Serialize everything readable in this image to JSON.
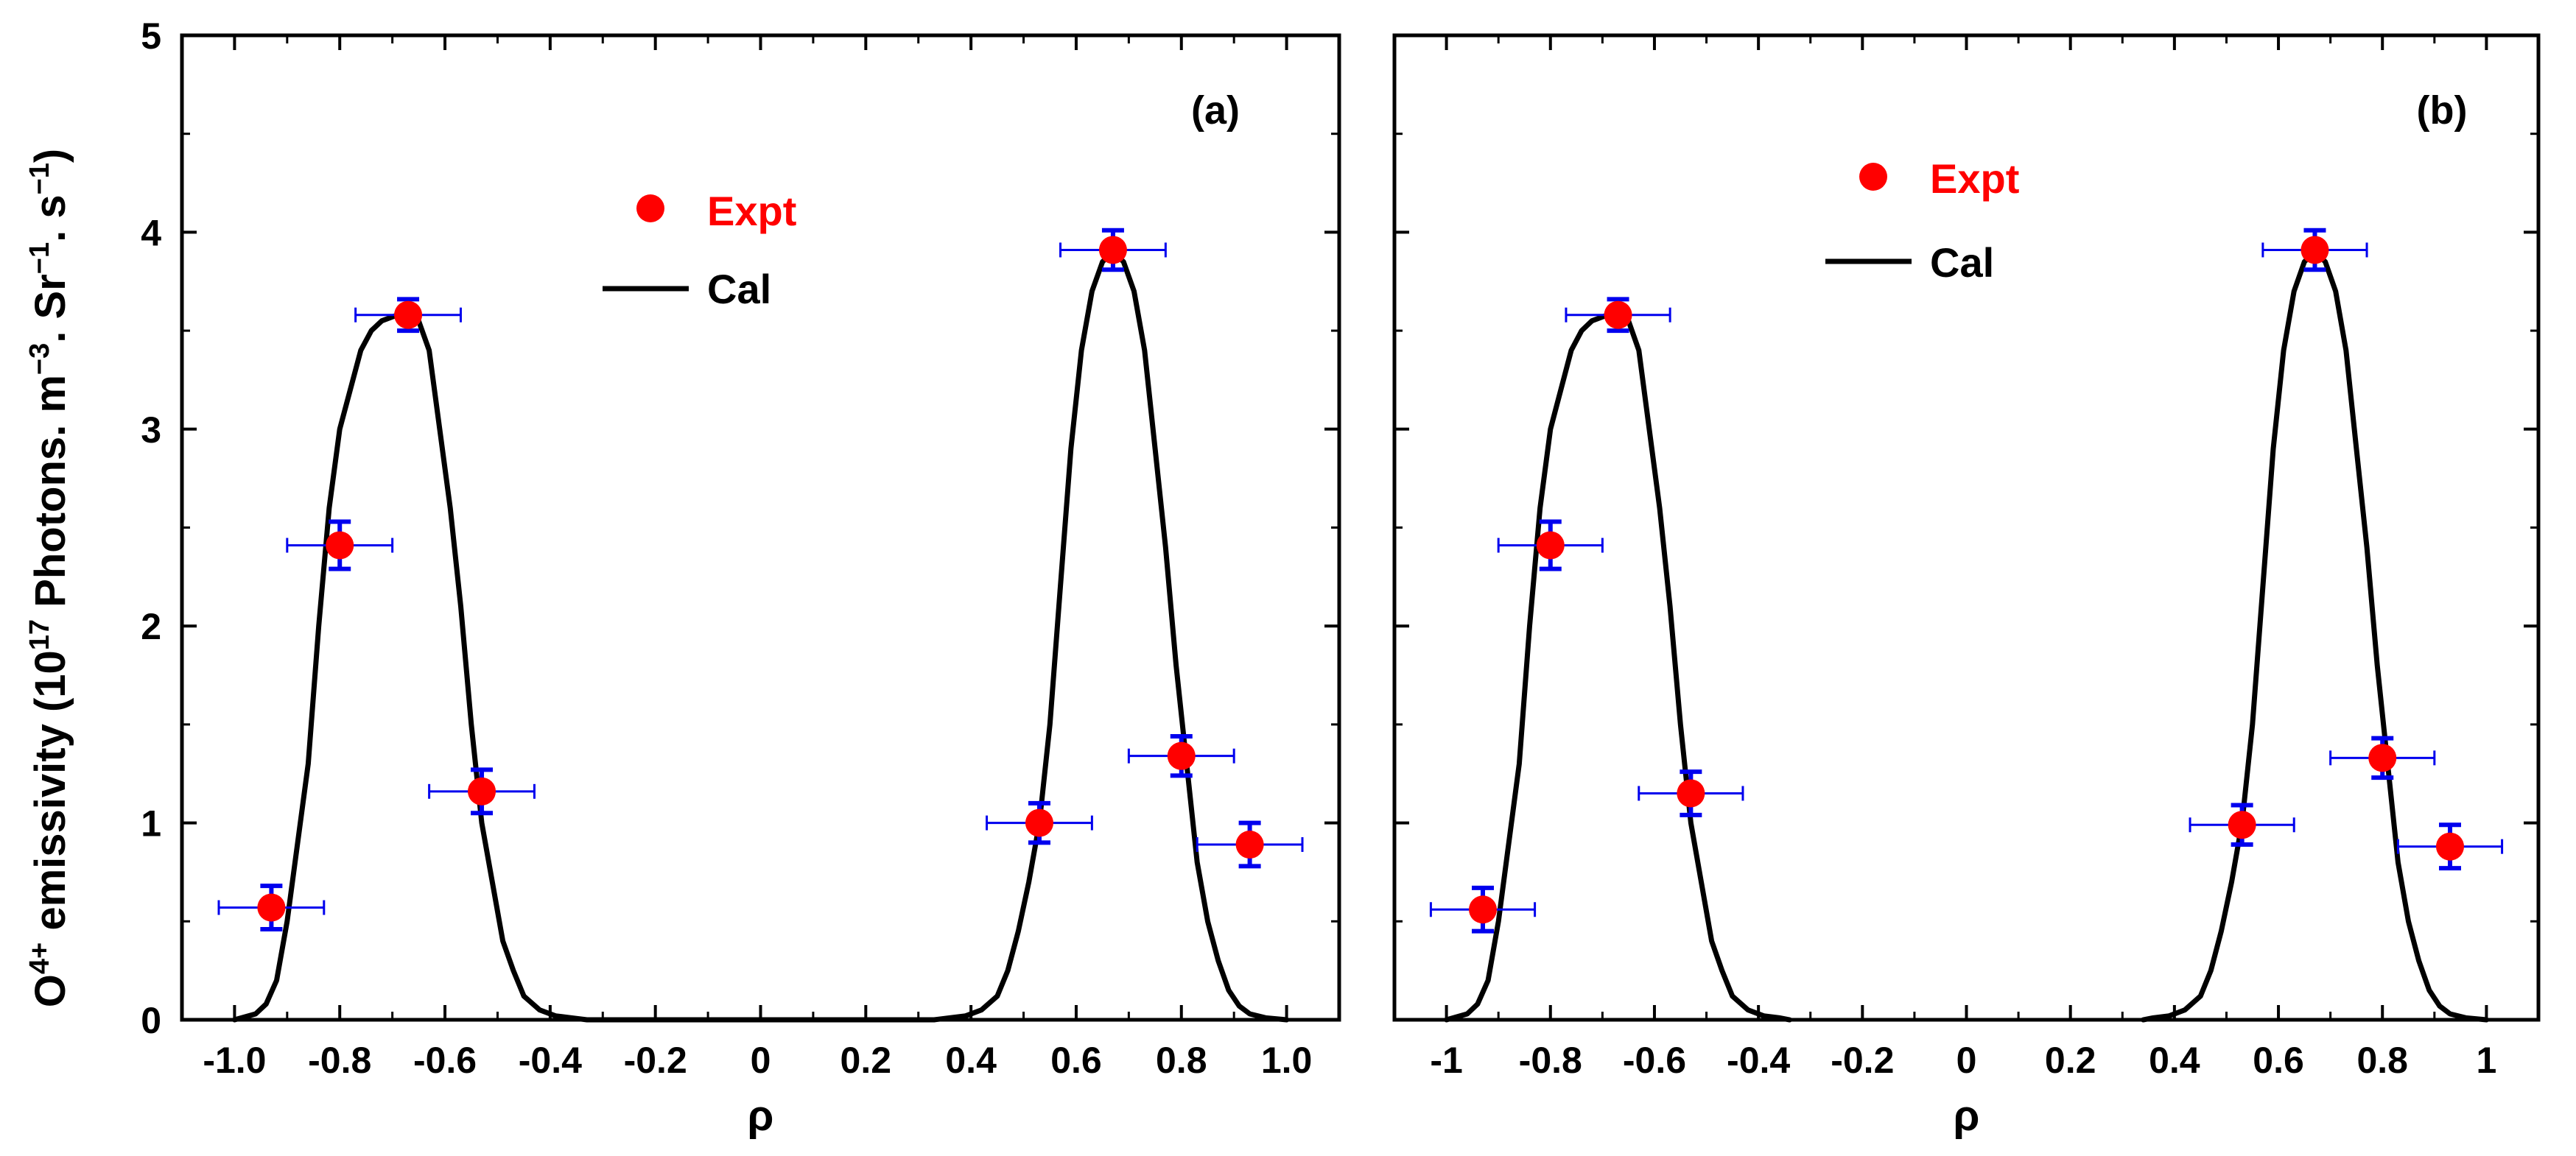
{
  "figure": {
    "ylabel_parts": [
      "O",
      "4+",
      " emissivity (10",
      "17",
      " Photons. m",
      "−3",
      ". Sr",
      "−1",
      ". s",
      "−1",
      ")"
    ],
    "colors": {
      "expt": "#ff0000",
      "errorbar": "#0000ee",
      "cal": "#000000",
      "axes": "#000000"
    }
  },
  "chart_data": [
    {
      "type": "line+scatter",
      "panel_label": "(a)",
      "xlabel": "ρ",
      "ylabel": "O4+ emissivity (10^17 Photons. m^-3. Sr^-1. s^-1)",
      "xlim": [
        -1.1,
        1.1
      ],
      "ylim": [
        0,
        5
      ],
      "xticks": [
        -1.0,
        -0.8,
        -0.6,
        -0.4,
        -0.2,
        0,
        0.2,
        0.4,
        0.6,
        0.8,
        1.0
      ],
      "xtick_labels": [
        "-1.0",
        "-0.8",
        "-0.6",
        "-0.4",
        "-0.2",
        "0",
        "0.2",
        "0.4",
        "0.6",
        "0.8",
        "1.0"
      ],
      "yticks": [
        0,
        1,
        2,
        3,
        4,
        5
      ],
      "ytick_labels": [
        "0",
        "1",
        "2",
        "3",
        "4",
        "5"
      ],
      "legend": {
        "expt": "Expt",
        "cal": "Cal",
        "placement": "upper-center-left"
      },
      "series": [
        {
          "name": "Expt",
          "kind": "scatter",
          "x": [
            -0.93,
            -0.8,
            -0.67,
            -0.53,
            0.53,
            0.67,
            0.8,
            0.93
          ],
          "y": [
            0.57,
            2.41,
            3.58,
            1.16,
            1.0,
            3.91,
            1.34,
            0.89
          ],
          "xerr": [
            0.1,
            0.1,
            0.1,
            0.1,
            0.1,
            0.1,
            0.1,
            0.1
          ],
          "yerr": [
            0.11,
            0.12,
            0.08,
            0.11,
            0.1,
            0.1,
            0.1,
            0.11
          ]
        },
        {
          "name": "Cal",
          "kind": "line",
          "x": [
            -1.0,
            -0.96,
            -0.94,
            -0.92,
            -0.9,
            -0.88,
            -0.86,
            -0.84,
            -0.82,
            -0.8,
            -0.78,
            -0.76,
            -0.74,
            -0.72,
            -0.7,
            -0.69,
            -0.67,
            -0.65,
            -0.63,
            -0.61,
            -0.59,
            -0.57,
            -0.55,
            -0.53,
            -0.51,
            -0.49,
            -0.47,
            -0.45,
            -0.42,
            -0.39,
            -0.36,
            -0.33,
            -0.3,
            0.3,
            0.33,
            0.36,
            0.39,
            0.42,
            0.45,
            0.47,
            0.49,
            0.51,
            0.53,
            0.55,
            0.57,
            0.59,
            0.61,
            0.63,
            0.65,
            0.67,
            0.69,
            0.71,
            0.73,
            0.75,
            0.77,
            0.79,
            0.81,
            0.83,
            0.85,
            0.87,
            0.89,
            0.91,
            0.93,
            0.96,
            1.0
          ],
          "y": [
            0.0,
            0.03,
            0.08,
            0.2,
            0.5,
            0.9,
            1.3,
            2.0,
            2.6,
            3.0,
            3.2,
            3.4,
            3.5,
            3.55,
            3.57,
            3.58,
            3.57,
            3.55,
            3.4,
            3.0,
            2.6,
            2.1,
            1.5,
            1.0,
            0.7,
            0.4,
            0.25,
            0.12,
            0.05,
            0.02,
            0.01,
            0.0,
            0.0,
            0.0,
            0.0,
            0.01,
            0.02,
            0.05,
            0.12,
            0.25,
            0.45,
            0.7,
            1.0,
            1.5,
            2.2,
            2.9,
            3.4,
            3.7,
            3.85,
            3.9,
            3.85,
            3.7,
            3.4,
            2.9,
            2.4,
            1.8,
            1.3,
            0.8,
            0.5,
            0.3,
            0.15,
            0.07,
            0.03,
            0.01,
            0.0
          ]
        }
      ]
    },
    {
      "type": "line+scatter",
      "panel_label": "(b)",
      "xlabel": "ρ",
      "ylabel": "",
      "xlim": [
        -1.1,
        1.1
      ],
      "ylim": [
        0,
        5
      ],
      "xticks": [
        -1.0,
        -0.8,
        -0.6,
        -0.4,
        -0.2,
        0,
        0.2,
        0.4,
        0.6,
        0.8,
        1.0
      ],
      "xtick_labels": [
        "-1",
        "-0.8",
        "-0.6",
        "-0.4",
        "-0.2",
        "0",
        "0.2",
        "0.4",
        "0.6",
        "0.8",
        "1"
      ],
      "yticks": [
        0,
        1,
        2,
        3,
        4,
        5
      ],
      "ytick_labels": [
        "",
        "",
        "",
        "",
        "",
        ""
      ],
      "legend": {
        "expt": "Expt",
        "cal": "Cal",
        "placement": "upper-center-left"
      },
      "series": [
        {
          "name": "Expt",
          "kind": "scatter",
          "x": [
            -0.93,
            -0.8,
            -0.67,
            -0.53,
            0.53,
            0.67,
            0.8,
            0.93
          ],
          "y": [
            0.56,
            2.41,
            3.58,
            1.15,
            0.99,
            3.91,
            1.33,
            0.88
          ],
          "xerr": [
            0.1,
            0.1,
            0.1,
            0.1,
            0.1,
            0.1,
            0.1,
            0.1
          ],
          "yerr": [
            0.11,
            0.12,
            0.08,
            0.11,
            0.1,
            0.1,
            0.1,
            0.11
          ]
        },
        {
          "name": "Cal",
          "kind": "line",
          "x": [
            -1.0,
            -0.96,
            -0.94,
            -0.92,
            -0.9,
            -0.88,
            -0.86,
            -0.84,
            -0.82,
            -0.8,
            -0.78,
            -0.76,
            -0.74,
            -0.72,
            -0.7,
            -0.69,
            -0.67,
            -0.65,
            -0.63,
            -0.61,
            -0.59,
            -0.57,
            -0.55,
            -0.53,
            -0.51,
            -0.49,
            -0.47,
            -0.45,
            -0.42,
            -0.39,
            -0.36,
            -0.34,
            null,
            0.34,
            0.36,
            0.39,
            0.42,
            0.45,
            0.47,
            0.49,
            0.51,
            0.53,
            0.55,
            0.57,
            0.59,
            0.61,
            0.63,
            0.65,
            0.67,
            0.69,
            0.71,
            0.73,
            0.75,
            0.77,
            0.79,
            0.81,
            0.83,
            0.85,
            0.87,
            0.89,
            0.91,
            0.93,
            0.96,
            1.0
          ],
          "y": [
            0.0,
            0.03,
            0.08,
            0.2,
            0.5,
            0.9,
            1.3,
            2.0,
            2.6,
            3.0,
            3.2,
            3.4,
            3.5,
            3.55,
            3.57,
            3.58,
            3.57,
            3.55,
            3.4,
            3.0,
            2.6,
            2.1,
            1.5,
            1.0,
            0.7,
            0.4,
            0.25,
            0.12,
            0.05,
            0.02,
            0.01,
            0.0,
            null,
            0.0,
            0.01,
            0.02,
            0.05,
            0.12,
            0.25,
            0.45,
            0.7,
            1.0,
            1.5,
            2.2,
            2.9,
            3.4,
            3.7,
            3.85,
            3.9,
            3.85,
            3.7,
            3.4,
            2.9,
            2.4,
            1.8,
            1.3,
            0.8,
            0.5,
            0.3,
            0.15,
            0.07,
            0.03,
            0.01,
            0.0
          ]
        }
      ]
    }
  ]
}
